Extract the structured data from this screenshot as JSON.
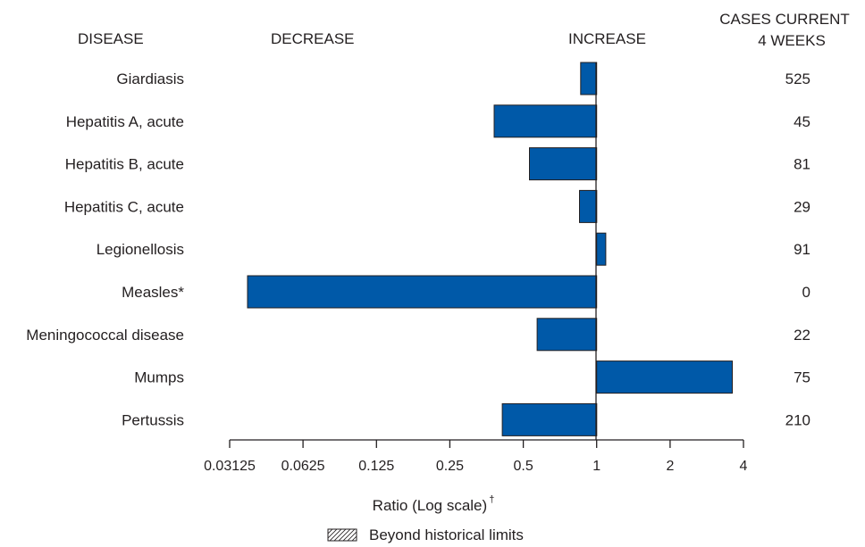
{
  "headers": {
    "disease": "DISEASE",
    "decrease": "DECREASE",
    "increase": "INCREASE",
    "cases_line1": "CASES CURRENT",
    "cases_line2": "4 WEEKS"
  },
  "axis": {
    "xlabel": "Ratio (Log scale)",
    "xlabel_superscript": "†"
  },
  "legend": {
    "label": "Beyond historical limits"
  },
  "colors": {
    "bar_fill": "#0059a8",
    "bar_stroke": "#231f20",
    "axis": "#231f20"
  },
  "chart_data": {
    "type": "bar",
    "orientation": "horizontal",
    "x_scale": "log2",
    "xlim": [
      0.03125,
      4
    ],
    "baseline": 1,
    "ticks": [
      0.03125,
      0.0625,
      0.125,
      0.25,
      0.5,
      1,
      2,
      4
    ],
    "tick_labels": [
      "0.03125",
      "0.0625",
      "0.125",
      "0.25",
      "0.5",
      "1",
      "2",
      "4"
    ],
    "categories": [
      "Giardiasis",
      "Hepatitis A, acute",
      "Hepatitis B, acute",
      "Hepatitis C, acute",
      "Legionellosis",
      "Measles*",
      "Meningococcal disease",
      "Mumps",
      "Pertussis"
    ],
    "values": [
      0.86,
      0.38,
      0.53,
      0.85,
      1.09,
      0.037,
      0.57,
      3.6,
      0.41
    ],
    "cases_current_4_weeks": [
      "525",
      "45",
      "81",
      "29",
      "91",
      "0",
      "22",
      "75",
      "210"
    ],
    "xlabel": "Ratio (Log scale)",
    "legend": [
      "Beyond historical limits"
    ]
  }
}
